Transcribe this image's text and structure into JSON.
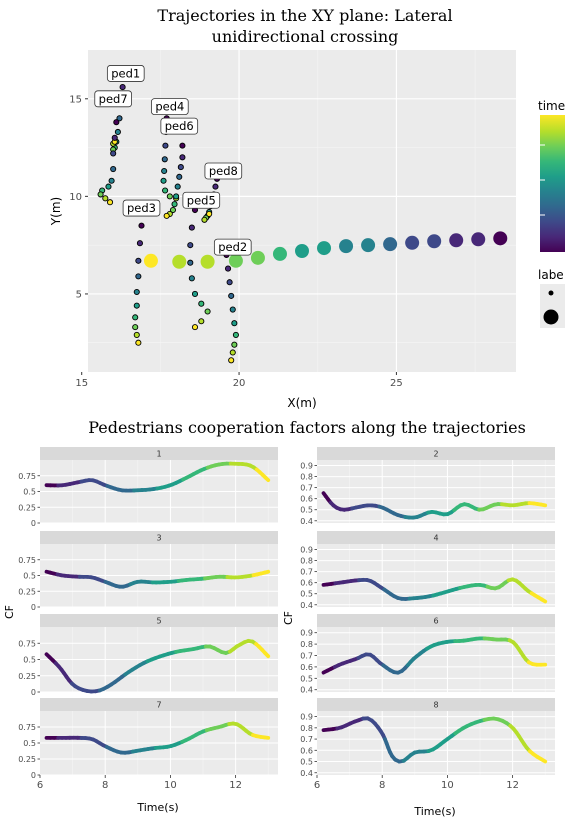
{
  "colors": {
    "panel_bg": "#ebebeb",
    "grid_major": "#ffffff",
    "strip_bg": "#d9d9d9",
    "viridis": [
      "#440154",
      "#482878",
      "#3e4989",
      "#31688e",
      "#26828e",
      "#1f9e89",
      "#35b779",
      "#6ece58",
      "#b5de2b",
      "#fde725"
    ]
  },
  "chart_data": [
    {
      "type": "scatter",
      "title": "Trajectories in the XY plane: Lateral unidirectional crossing",
      "title_lines": [
        "Trajectories in the XY plane: Lateral",
        "unidirectional crossing"
      ],
      "xlabel": "X(m)",
      "ylabel": "Y(m)",
      "xlim": [
        15.2,
        28.8
      ],
      "ylim": [
        1.0,
        17.5
      ],
      "xticks": [
        15,
        20,
        25
      ],
      "yticks": [
        5,
        10,
        15
      ],
      "grid": true,
      "legend": {
        "placement": "right",
        "color_title": "time",
        "size_title": "labe",
        "size_entries": [
          "",
          ""
        ]
      },
      "labels": [
        {
          "text": "ped1",
          "x": 16.4,
          "y": 16.3
        },
        {
          "text": "ped7",
          "x": 16.0,
          "y": 15.0
        },
        {
          "text": "ped4",
          "x": 17.8,
          "y": 14.6
        },
        {
          "text": "ped6",
          "x": 18.1,
          "y": 13.6
        },
        {
          "text": "ped8",
          "x": 19.5,
          "y": 11.3
        },
        {
          "text": "ped5",
          "x": 18.8,
          "y": 9.8
        },
        {
          "text": "ped3",
          "x": 16.9,
          "y": 9.4
        },
        {
          "text": "ped2",
          "x": 19.8,
          "y": 7.4
        }
      ],
      "series": [
        {
          "name": "ped1",
          "x": [
            16.35,
            16.3,
            16.25,
            16.2,
            16.15,
            16.1,
            16.05,
            16.0,
            16.0,
            16.05
          ],
          "y": [
            16.2,
            15.6,
            14.8,
            14.0,
            13.3,
            12.8,
            12.5,
            12.4,
            12.7,
            12.8
          ],
          "size": "small"
        },
        {
          "name": "ped7",
          "x": [
            16.1,
            16.05,
            16.0,
            16.0,
            15.95,
            15.85,
            15.65,
            15.6,
            15.75,
            15.9
          ],
          "y": [
            13.8,
            13.0,
            12.2,
            11.4,
            10.8,
            10.5,
            10.3,
            10.1,
            9.9,
            9.7
          ],
          "size": "small"
        },
        {
          "name": "ped4",
          "x": [
            17.7,
            17.68,
            17.66,
            17.64,
            17.62,
            17.6,
            17.65,
            17.8,
            18.0,
            18.3
          ],
          "y": [
            14.0,
            13.3,
            12.6,
            11.9,
            11.3,
            10.8,
            10.3,
            10.0,
            9.9,
            9.8
          ],
          "size": "small"
        },
        {
          "name": "ped6",
          "x": [
            18.2,
            18.2,
            18.15,
            18.1,
            18.05,
            18.0,
            17.95,
            17.9,
            17.8,
            17.7
          ],
          "y": [
            12.6,
            12.0,
            11.5,
            11.0,
            10.5,
            10.0,
            9.6,
            9.3,
            9.1,
            9.0
          ],
          "size": "small"
        },
        {
          "name": "ped8",
          "x": [
            19.3,
            19.25,
            19.2,
            19.15,
            19.1,
            19.05,
            19.0,
            18.95,
            18.9,
            19.05
          ],
          "y": [
            10.9,
            10.5,
            10.1,
            9.8,
            9.5,
            9.2,
            9.0,
            8.9,
            8.8,
            9.1
          ],
          "size": "small"
        },
        {
          "name": "ped5",
          "x": [
            18.6,
            18.5,
            18.45,
            18.45,
            18.5,
            18.6,
            18.8,
            19.0,
            18.8,
            18.6
          ],
          "y": [
            9.3,
            8.4,
            7.5,
            6.6,
            5.8,
            5.0,
            4.5,
            4.1,
            3.6,
            3.3
          ],
          "size": "small"
        },
        {
          "name": "ped3",
          "x": [
            16.9,
            16.85,
            16.8,
            16.8,
            16.75,
            16.75,
            16.7,
            16.7,
            16.75,
            16.8
          ],
          "y": [
            8.5,
            7.6,
            6.7,
            5.9,
            5.1,
            4.4,
            3.8,
            3.3,
            2.9,
            2.5
          ],
          "size": "small"
        },
        {
          "name": "ped2",
          "x": [
            19.6,
            19.65,
            19.7,
            19.75,
            19.8,
            19.85,
            19.9,
            19.85,
            19.8,
            19.75
          ],
          "y": [
            7.0,
            6.3,
            5.6,
            4.9,
            4.2,
            3.5,
            2.9,
            2.4,
            2.0,
            1.6
          ],
          "size": "small"
        },
        {
          "name": "ped2",
          "x": [
            28.3,
            27.6,
            26.9,
            26.2,
            25.5,
            24.8,
            24.1,
            23.4,
            22.7,
            22.0,
            21.3,
            20.6,
            19.9,
            19.0,
            18.1,
            17.2
          ],
          "y": [
            7.85,
            7.8,
            7.75,
            7.7,
            7.62,
            7.55,
            7.5,
            7.45,
            7.35,
            7.2,
            7.05,
            6.85,
            6.7,
            6.65,
            6.65,
            6.7
          ],
          "size": "large"
        }
      ]
    },
    {
      "type": "line",
      "title": "Pedestrians cooperation factors along the trajectories",
      "xlabel": "Time(s)",
      "ylabel": "CF",
      "xlim": [
        6,
        13.3
      ],
      "xticks": [
        6,
        8,
        10,
        12
      ],
      "panels": [
        {
          "name": "1",
          "ylim": [
            0,
            1.0
          ],
          "yticks": [
            0,
            0.25,
            0.5,
            0.75
          ],
          "x": [
            6.2,
            6.7,
            7.2,
            7.6,
            8.0,
            8.5,
            9.0,
            9.5,
            10.0,
            10.5,
            11.0,
            11.5,
            12.0,
            12.5,
            13.0
          ],
          "y": [
            0.6,
            0.6,
            0.65,
            0.68,
            0.6,
            0.52,
            0.52,
            0.54,
            0.6,
            0.72,
            0.85,
            0.93,
            0.94,
            0.9,
            0.68
          ]
        },
        {
          "name": "2",
          "ylim": [
            0.38,
            0.95
          ],
          "yticks": [
            0.4,
            0.5,
            0.6,
            0.7,
            0.8,
            0.9
          ],
          "x": [
            6.2,
            6.5,
            6.8,
            7.2,
            7.6,
            8.0,
            8.5,
            9.0,
            9.5,
            10.0,
            10.5,
            11.0,
            11.5,
            12.0,
            12.5,
            13.0
          ],
          "y": [
            0.65,
            0.54,
            0.5,
            0.52,
            0.54,
            0.52,
            0.45,
            0.43,
            0.48,
            0.46,
            0.55,
            0.5,
            0.55,
            0.54,
            0.56,
            0.54
          ]
        },
        {
          "name": "3",
          "ylim": [
            0,
            1.0
          ],
          "yticks": [
            0,
            0.25,
            0.5,
            0.75
          ],
          "x": [
            6.2,
            6.7,
            7.2,
            7.6,
            8.0,
            8.5,
            9.0,
            9.5,
            10.0,
            10.5,
            11.0,
            11.5,
            12.0,
            12.5,
            13.0
          ],
          "y": [
            0.56,
            0.5,
            0.48,
            0.47,
            0.4,
            0.32,
            0.4,
            0.39,
            0.4,
            0.43,
            0.45,
            0.48,
            0.47,
            0.5,
            0.56
          ]
        },
        {
          "name": "4",
          "ylim": [
            0.38,
            0.95
          ],
          "yticks": [
            0.4,
            0.5,
            0.6,
            0.7,
            0.8,
            0.9
          ],
          "x": [
            6.2,
            6.7,
            7.2,
            7.6,
            8.0,
            8.5,
            9.0,
            9.5,
            10.0,
            10.5,
            11.0,
            11.5,
            12.0,
            12.5,
            13.0
          ],
          "y": [
            0.58,
            0.6,
            0.62,
            0.62,
            0.55,
            0.46,
            0.46,
            0.48,
            0.52,
            0.56,
            0.58,
            0.55,
            0.63,
            0.52,
            0.43
          ]
        },
        {
          "name": "5",
          "ylim": [
            0,
            1.0
          ],
          "yticks": [
            0,
            0.25,
            0.5,
            0.75
          ],
          "x": [
            6.2,
            6.6,
            7.0,
            7.4,
            7.8,
            8.2,
            8.7,
            9.2,
            9.7,
            10.2,
            10.7,
            11.2,
            11.7,
            12.1,
            12.5,
            13.0
          ],
          "y": [
            0.58,
            0.38,
            0.12,
            0.02,
            0.02,
            0.12,
            0.3,
            0.45,
            0.55,
            0.62,
            0.66,
            0.7,
            0.6,
            0.72,
            0.78,
            0.55
          ]
        },
        {
          "name": "6",
          "ylim": [
            0.38,
            0.95
          ],
          "yticks": [
            0.4,
            0.5,
            0.6,
            0.7,
            0.8,
            0.9
          ],
          "x": [
            6.2,
            6.7,
            7.2,
            7.6,
            8.0,
            8.5,
            9.0,
            9.5,
            10.0,
            10.5,
            11.0,
            11.5,
            12.0,
            12.5,
            13.0
          ],
          "y": [
            0.55,
            0.62,
            0.67,
            0.71,
            0.62,
            0.55,
            0.68,
            0.78,
            0.82,
            0.83,
            0.85,
            0.84,
            0.82,
            0.64,
            0.62
          ]
        },
        {
          "name": "7",
          "ylim": [
            0,
            1.0
          ],
          "yticks": [
            0,
            0.25,
            0.5,
            0.75
          ],
          "x": [
            6.2,
            6.7,
            7.2,
            7.6,
            8.0,
            8.5,
            9.0,
            9.5,
            10.0,
            10.5,
            11.0,
            11.5,
            12.0,
            12.5,
            13.0
          ],
          "y": [
            0.58,
            0.58,
            0.58,
            0.56,
            0.45,
            0.35,
            0.38,
            0.42,
            0.45,
            0.55,
            0.68,
            0.75,
            0.8,
            0.63,
            0.58
          ]
        },
        {
          "name": "8",
          "ylim": [
            0.38,
            0.95
          ],
          "yticks": [
            0.4,
            0.5,
            0.6,
            0.7,
            0.8,
            0.9
          ],
          "x": [
            6.2,
            6.7,
            7.2,
            7.6,
            8.0,
            8.3,
            8.6,
            9.0,
            9.5,
            10.0,
            10.5,
            11.0,
            11.5,
            12.0,
            12.5,
            13.0
          ],
          "y": [
            0.78,
            0.8,
            0.86,
            0.88,
            0.75,
            0.55,
            0.5,
            0.58,
            0.6,
            0.7,
            0.8,
            0.86,
            0.88,
            0.8,
            0.6,
            0.5
          ]
        }
      ]
    }
  ]
}
